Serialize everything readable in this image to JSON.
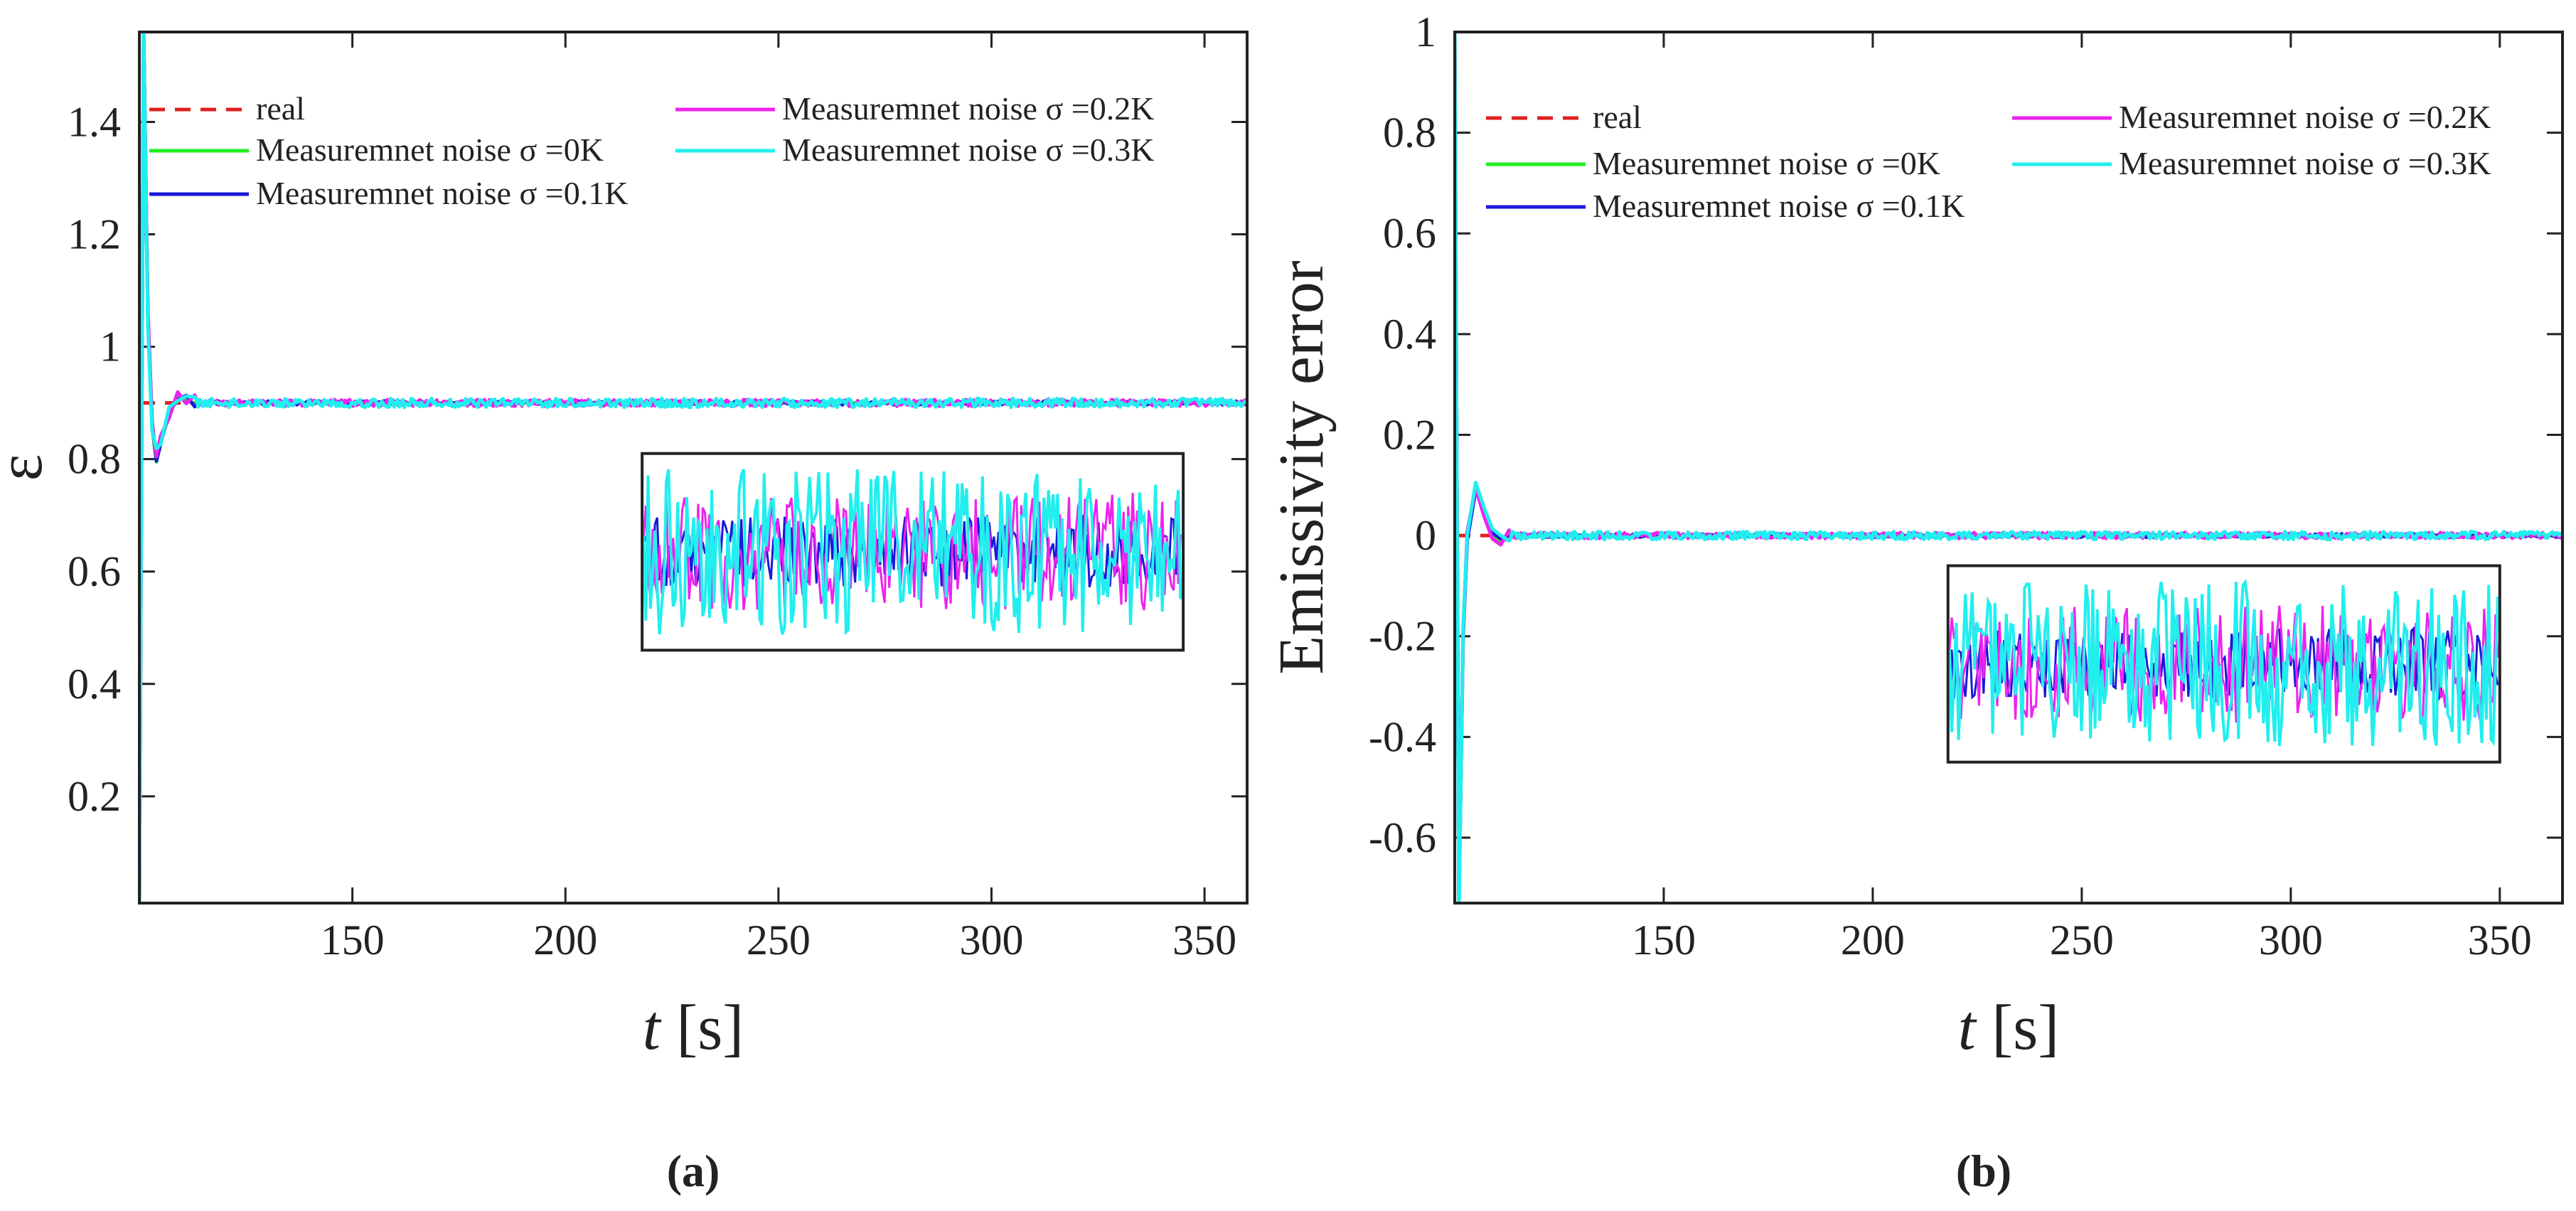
{
  "chart_data": [
    {
      "type": "line",
      "panel_caption": "(a)",
      "xlabel": "t [s]",
      "xlabel_var": "t",
      "xlabel_unit": " [s]",
      "ylabel": "ε",
      "xlim": [
        100,
        360
      ],
      "ylim": [
        0.01,
        1.56
      ],
      "x_ticks": [
        150,
        200,
        250,
        300,
        350
      ],
      "y_ticks": [
        0.2,
        0.4,
        0.6,
        0.8,
        1,
        1.2,
        1.4
      ],
      "y_tick_labels": [
        "0.2",
        "0.4",
        "0.6",
        "0.8",
        "1",
        "1.2",
        "1.4"
      ],
      "steady_value": 0.9,
      "transient": [
        [
          100,
          0.01
        ],
        [
          101,
          1.56
        ],
        [
          102,
          1.05
        ],
        [
          103,
          0.86
        ],
        [
          104,
          0.8
        ],
        [
          105,
          0.83
        ],
        [
          107,
          0.88
        ],
        [
          109,
          0.91
        ],
        [
          111,
          0.905
        ],
        [
          113,
          0.9
        ]
      ],
      "legend": [
        {
          "label": "real",
          "color": "#e02020",
          "dashed": true
        },
        {
          "label": "Measuremnet noise σ =0K",
          "color": "#22ee22",
          "dashed": false
        },
        {
          "label": "Measuremnet noise σ =0.1K",
          "color": "#1a1ad8",
          "dashed": false
        },
        {
          "label": "Measuremnet noise σ =0.2K",
          "color": "#ee22ee",
          "dashed": false
        },
        {
          "label": "Measuremnet noise σ =0.3K",
          "color": "#22eeee",
          "dashed": false
        }
      ],
      "inset": {
        "description": "zoomed steady-state noise",
        "x_range": [
          218,
          345
        ],
        "y_range": [
          0.46,
          0.81
        ]
      }
    },
    {
      "type": "line",
      "panel_caption": "(b)",
      "xlabel": "t [s]",
      "xlabel_var": "t",
      "xlabel_unit": " [s]",
      "ylabel": "Emissivity error",
      "xlim": [
        100,
        365
      ],
      "ylim": [
        -0.73,
        1.0
      ],
      "x_ticks": [
        150,
        200,
        250,
        300,
        350
      ],
      "y_ticks": [
        -0.6,
        -0.4,
        -0.2,
        0,
        0.2,
        0.4,
        0.6,
        0.8,
        1
      ],
      "y_tick_labels": [
        "-0.6",
        "-0.4",
        "-0.2",
        "0",
        "0.2",
        "0.4",
        "0.6",
        "0.8",
        "1"
      ],
      "steady_value": 0,
      "transient": [
        [
          100,
          1.0
        ],
        [
          101,
          -0.73
        ],
        [
          102,
          -0.2
        ],
        [
          103,
          0.0
        ],
        [
          105,
          0.1
        ],
        [
          107,
          0.05
        ],
        [
          109,
          0.0
        ],
        [
          111,
          -0.01
        ],
        [
          113,
          0.0
        ]
      ],
      "legend": [
        {
          "label": "real",
          "color": "#e02020",
          "dashed": true
        },
        {
          "label": "Measuremnet noise σ =0K",
          "color": "#22ee22",
          "dashed": false
        },
        {
          "label": "Measuremnet noise σ =0.1K",
          "color": "#1a1ad8",
          "dashed": false
        },
        {
          "label": "Measuremnet noise σ =0.2K",
          "color": "#ee22ee",
          "dashed": false
        },
        {
          "label": "Measuremnet noise σ =0.3K",
          "color": "#22eeee",
          "dashed": false
        }
      ],
      "inset": {
        "description": "zoomed steady-state noise",
        "x_range": [
          218,
          350
        ],
        "y_range": [
          -0.45,
          -0.06
        ]
      }
    }
  ]
}
